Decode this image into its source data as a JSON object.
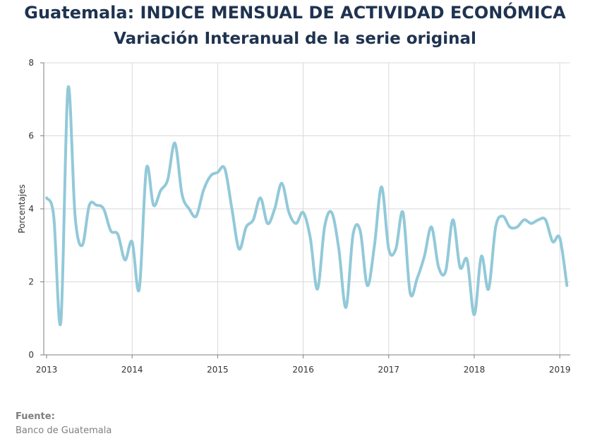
{
  "title": "Guatemala: INDICE MENSUAL DE ACTIVIDAD ECONÓMICA",
  "subtitle": "Variación Interanual de la serie original",
  "source": {
    "label": "Fuente:",
    "value": "Banco de Guatemala"
  },
  "colors": {
    "line": "#92c9d9",
    "grid": "#d9d9d9",
    "axis": "#7f7f7f",
    "title": "#1f3350"
  },
  "chart_data": {
    "type": "line",
    "title": "Guatemala: INDICE MENSUAL DE ACTIVIDAD ECONÓMICA",
    "subtitle": "Variación Interanual de la serie original",
    "ylabel": "Porcentajes",
    "xlabel": "",
    "ylim": [
      0,
      8
    ],
    "yticks": [
      0,
      2,
      4,
      6,
      8
    ],
    "xticks": [
      "2013",
      "2014",
      "2015",
      "2016",
      "2017",
      "2018",
      "2019"
    ],
    "grid": true,
    "legend": "none",
    "x_start": "2013-01",
    "series": [
      {
        "values": [
          4.3,
          3.8,
          0.9,
          7.3,
          3.8,
          3.0,
          4.1,
          4.1,
          4.0,
          3.4,
          3.3,
          2.6,
          3.1,
          1.8,
          5.1,
          4.1,
          4.5,
          4.8,
          5.8,
          4.4,
          4.0,
          3.8,
          4.5,
          4.9,
          5.0,
          5.1,
          4.0,
          2.9,
          3.5,
          3.7,
          4.3,
          3.6,
          4.0,
          4.7,
          3.9,
          3.6,
          3.9,
          3.2,
          1.8,
          3.5,
          3.9,
          2.9,
          1.3,
          3.3,
          3.4,
          1.9,
          3.0,
          4.6,
          2.9,
          2.9,
          3.9,
          1.7,
          2.1,
          2.7,
          3.5,
          2.4,
          2.3,
          3.7,
          2.4,
          2.6,
          1.1,
          2.7,
          1.8,
          3.5,
          3.8,
          3.5,
          3.5,
          3.7,
          3.6,
          3.7,
          3.7,
          3.1,
          3.2,
          1.9
        ]
      }
    ]
  }
}
